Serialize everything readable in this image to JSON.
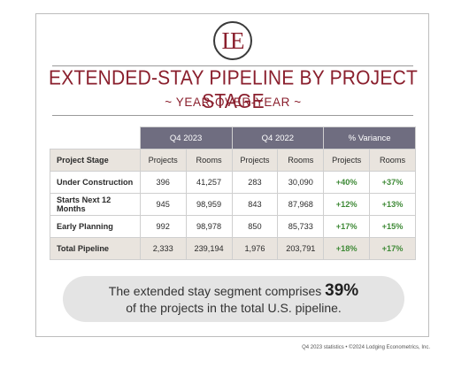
{
  "logo": {
    "text": "LE"
  },
  "title": "EXTENDED-STAY PIPELINE BY PROJECT STAGE",
  "subtitle": "~ YEAR-OVER-YEAR ~",
  "table": {
    "group_headers": [
      "Q4 2023",
      "Q4 2022",
      "% Variance"
    ],
    "column_headers": [
      "Project Stage",
      "Projects",
      "Rooms",
      "Projects",
      "Rooms",
      "Projects",
      "Rooms"
    ],
    "rows": [
      {
        "stage": "Under Construction",
        "p23": "396",
        "r23": "41,257",
        "p22": "283",
        "r22": "30,090",
        "vp": "+40%",
        "vr": "+37%"
      },
      {
        "stage": "Starts Next 12 Months",
        "p23": "945",
        "r23": "98,959",
        "p22": "843",
        "r22": "87,968",
        "vp": "+12%",
        "vr": "+13%"
      },
      {
        "stage": "Early Planning",
        "p23": "992",
        "r23": "98,978",
        "p22": "850",
        "r22": "85,733",
        "vp": "+17%",
        "vr": "+15%"
      },
      {
        "stage": "Total Pipeline",
        "p23": "2,333",
        "r23": "239,194",
        "p22": "1,976",
        "r22": "203,791",
        "vp": "+18%",
        "vr": "+17%"
      }
    ]
  },
  "banner": {
    "line1_prefix": "The extended stay segment comprises",
    "highlight": "39%",
    "line2": "of the projects in the total U.S. pipeline."
  },
  "footnote": "Q4 2023 statistics • ©2024 Lodging Econometrics, Inc.",
  "colors": {
    "title": "#8a1f2d",
    "header_band": "#6f6d80",
    "subheader_fill": "#e9e4de",
    "variance_positive": "#3f8a37",
    "banner_fill": "#e4e4e4"
  }
}
